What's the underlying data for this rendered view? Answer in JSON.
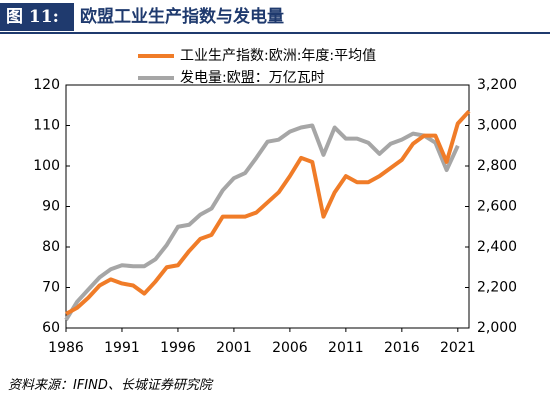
{
  "header": {
    "label": "图 11:",
    "title": "欧盟工业生产指数与发电量"
  },
  "source": "资料来源：IFIND、长城证券研究院",
  "chart_data": {
    "type": "line",
    "x": [
      1986,
      1987,
      1988,
      1989,
      1990,
      1991,
      1992,
      1993,
      1994,
      1995,
      1996,
      1997,
      1998,
      1999,
      2000,
      2001,
      2002,
      2003,
      2004,
      2005,
      2006,
      2007,
      2008,
      2009,
      2010,
      2011,
      2012,
      2013,
      2014,
      2015,
      2016,
      2017,
      2018,
      2019,
      2020,
      2021,
      2022
    ],
    "xlim": [
      1986,
      2022
    ],
    "xticks": [
      1986,
      1991,
      1996,
      2001,
      2006,
      2011,
      2016,
      2021
    ],
    "ylim": [
      60,
      120
    ],
    "yticks": [
      60,
      70,
      80,
      90,
      100,
      110,
      120
    ],
    "y2lim": [
      2000,
      3200
    ],
    "y2ticks": [
      {
        "value": 2000,
        "label": "2,000"
      },
      {
        "value": 2200,
        "label": "2,200"
      },
      {
        "value": 2400,
        "label": "2,400"
      },
      {
        "value": 2600,
        "label": "2,600"
      },
      {
        "value": 2800,
        "label": "2,800"
      },
      {
        "value": 3000,
        "label": "3,000"
      },
      {
        "value": 3200,
        "label": "3,200"
      }
    ],
    "legend": "top",
    "series": [
      {
        "name": "工业生产指数:欧洲:年度:平均值",
        "color": "#f07c28",
        "values": [
          63.5,
          65,
          67.5,
          70.5,
          72,
          71,
          70.5,
          68.5,
          71.5,
          75,
          75.5,
          79,
          82,
          83,
          87.5,
          87.5,
          87.5,
          88.5,
          91,
          93.5,
          97.5,
          102,
          101,
          87.5,
          93.5,
          97.5,
          96,
          96,
          97.5,
          99.5,
          101.5,
          105.5,
          107.5,
          107.5,
          101,
          110.5,
          113.5
        ]
      },
      {
        "name": "发电量:欧盟：万亿瓦时",
        "color": "#a6a6a6",
        "axis": "y2",
        "values": [
          2040,
          2130,
          2190,
          2250,
          2290,
          2310,
          2305,
          2305,
          2340,
          2410,
          2500,
          2510,
          2560,
          2590,
          2680,
          2740,
          2765,
          2840,
          2920,
          2930,
          2970,
          2990,
          3000,
          2855,
          2990,
          2935,
          2935,
          2915,
          2860,
          2910,
          2930,
          2960,
          2950,
          2915,
          2780,
          2900,
          null
        ]
      }
    ]
  }
}
